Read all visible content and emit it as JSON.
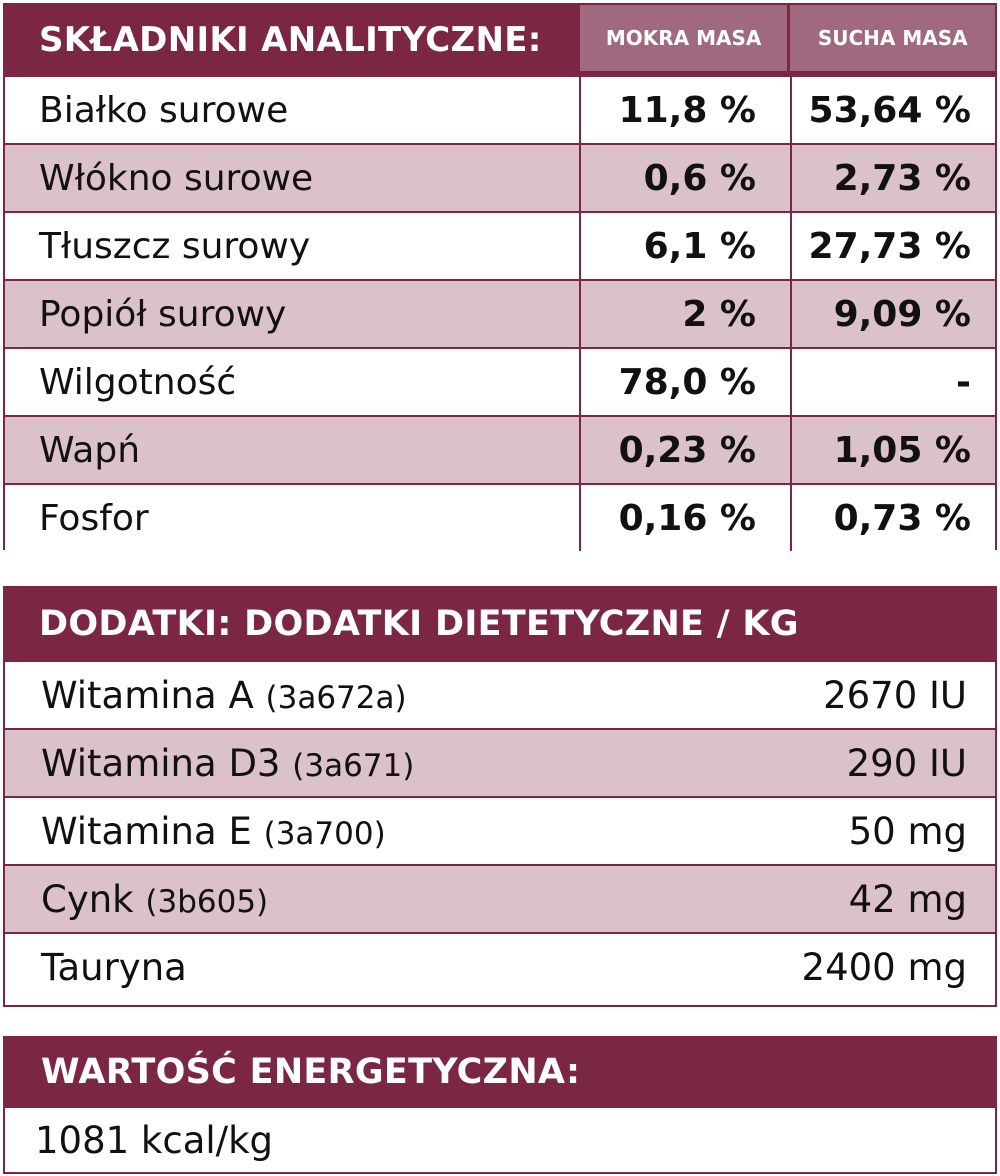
{
  "analytic": {
    "title": "SKŁADNIKI ANALITYCZNE:",
    "col_wet": "MOKRA MASA",
    "col_dry": "SUCHA MASA",
    "rows": [
      {
        "label": "Białko surowe",
        "wet": "11,8 %",
        "dry": "53,64 %"
      },
      {
        "label": "Włókno surowe",
        "wet": "0,6 %",
        "dry": "2,73 %"
      },
      {
        "label": "Tłuszcz surowy",
        "wet": "6,1 %",
        "dry": "27,73 %"
      },
      {
        "label": "Popiół surowy",
        "wet": "2 %",
        "dry": "9,09 %"
      },
      {
        "label": "Wilgotność",
        "wet": "78,0 %",
        "dry": "-"
      },
      {
        "label": "Wapń",
        "wet": "0,23 %",
        "dry": "1,05 %"
      },
      {
        "label": "Fosfor",
        "wet": "0,16 %",
        "dry": "0,73 %"
      }
    ]
  },
  "additives": {
    "title": "DODATKI: DODATKI DIETETYCZNE / KG",
    "rows": [
      {
        "label": "Witamina A",
        "code": "(3a672a)",
        "value": "2670 IU"
      },
      {
        "label": "Witamina D3",
        "code": "(3a671)",
        "value": "290 IU"
      },
      {
        "label": "Witamina E",
        "code": "(3a700)",
        "value": "50 mg"
      },
      {
        "label": "Cynk",
        "code": "(3b605)",
        "value": "42 mg"
      },
      {
        "label": "Tauryna",
        "code": "",
        "value": "2400 mg"
      }
    ]
  },
  "energy": {
    "title": "WARTOŚĆ ENERGETYCZNA:",
    "value": "1081 kcal/kg"
  },
  "colors": {
    "header_bg": "#7b2744",
    "subheader_bg": "#a0697f",
    "shaded_row": "#dbc2c9"
  }
}
